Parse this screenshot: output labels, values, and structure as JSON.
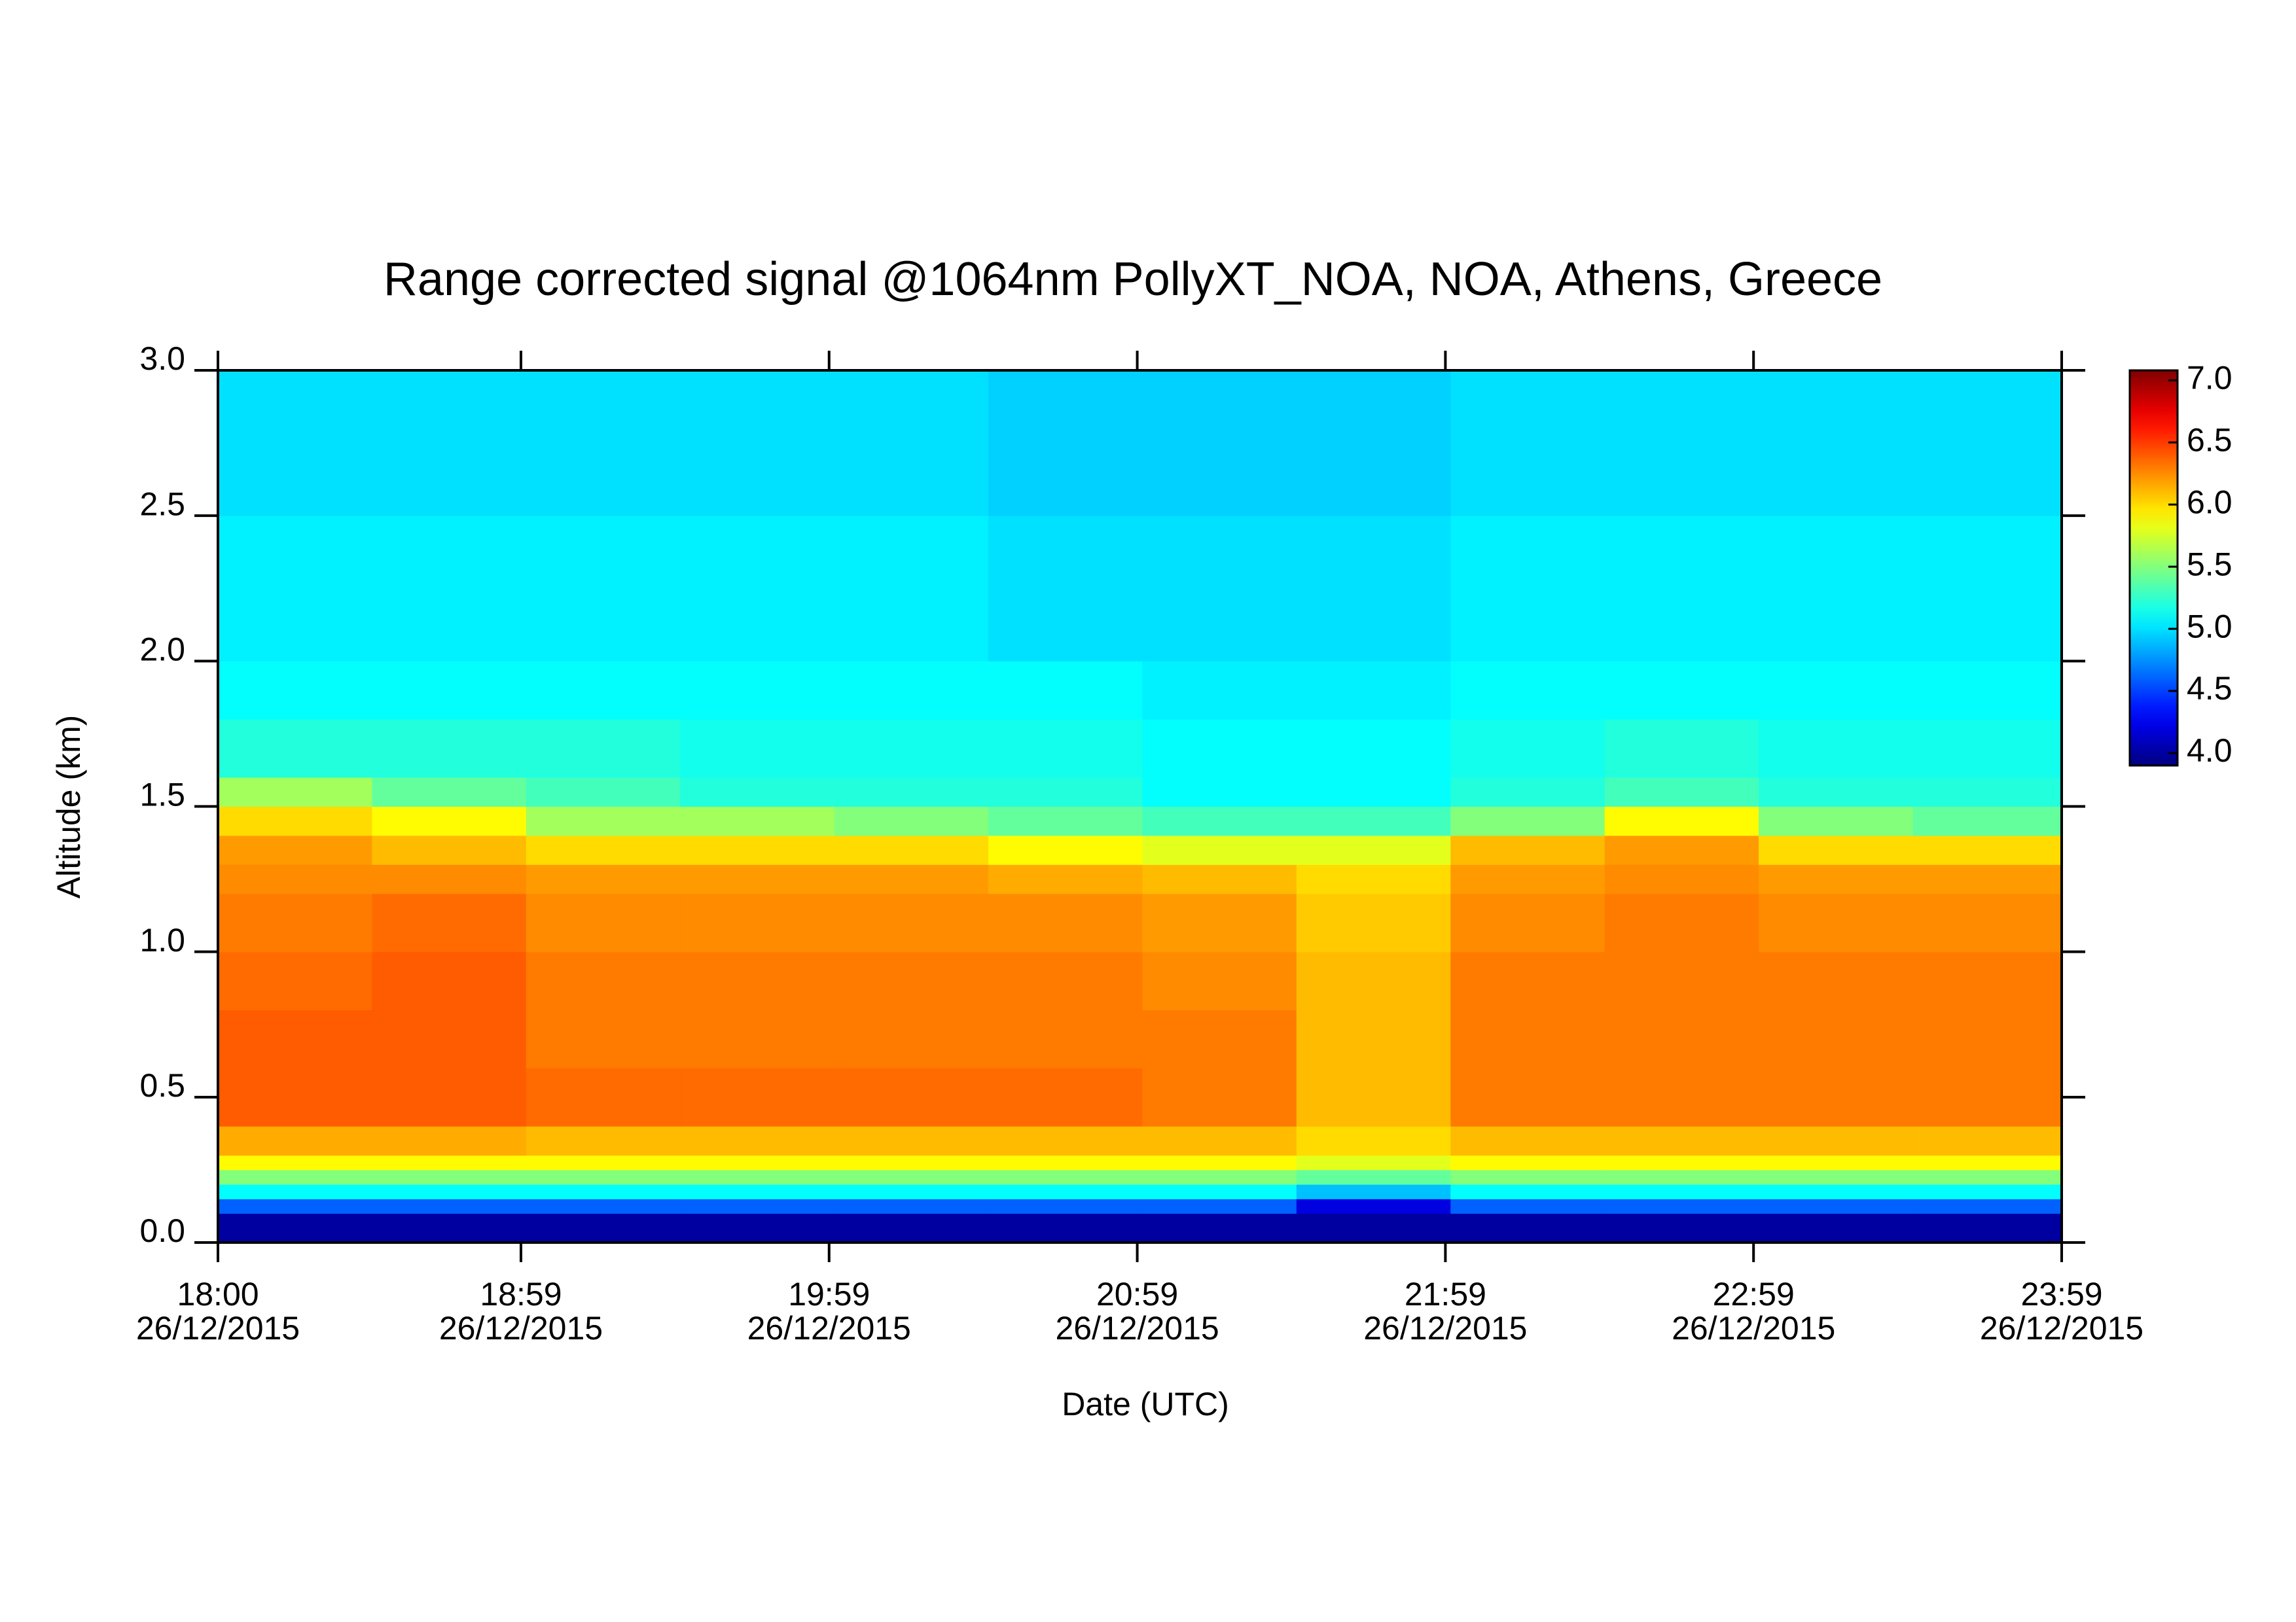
{
  "chart_data": {
    "type": "heatmap",
    "title": "Range corrected signal @1064nm  PollyXT_NOA, NOA, Athens, Greece",
    "xlabel": "Date (UTC)",
    "ylabel": "Altitude (km)",
    "colormap": "jet",
    "x_edges": [
      18,
      18.5,
      19,
      19.5,
      20,
      20.5,
      21,
      21.5,
      22,
      22.5,
      23,
      23.5,
      23.9833
    ],
    "y_edges": [
      0,
      0.1,
      0.15,
      0.2,
      0.25,
      0.3,
      0.4,
      0.6,
      0.8,
      1.0,
      1.2,
      1.3,
      1.4,
      1.5,
      1.6,
      1.8,
      2.0,
      2.5,
      3.0
    ],
    "z": [
      [
        4.0,
        4.0,
        4.0,
        4.0,
        4.0,
        4.0,
        4.0,
        4.0,
        4.0,
        4.0,
        4.0,
        4.0
      ],
      [
        4.6,
        4.6,
        4.6,
        4.6,
        4.6,
        4.6,
        4.6,
        4.2,
        4.6,
        4.6,
        4.6,
        4.6
      ],
      [
        5.1,
        5.1,
        5.1,
        5.1,
        5.1,
        5.1,
        5.1,
        4.9,
        5.1,
        5.1,
        5.1,
        5.1
      ],
      [
        5.5,
        5.5,
        5.5,
        5.5,
        5.5,
        5.5,
        5.5,
        5.4,
        5.5,
        5.5,
        5.5,
        5.5
      ],
      [
        5.9,
        5.9,
        5.9,
        5.9,
        5.9,
        5.9,
        5.9,
        5.8,
        5.9,
        5.9,
        5.9,
        5.9
      ],
      [
        6.15,
        6.15,
        6.1,
        6.1,
        6.1,
        6.1,
        6.1,
        6.0,
        6.1,
        6.1,
        6.1,
        6.1
      ],
      [
        6.4,
        6.4,
        6.35,
        6.35,
        6.35,
        6.35,
        6.3,
        6.1,
        6.3,
        6.3,
        6.3,
        6.3
      ],
      [
        6.4,
        6.4,
        6.3,
        6.3,
        6.3,
        6.3,
        6.3,
        6.1,
        6.3,
        6.3,
        6.3,
        6.3
      ],
      [
        6.35,
        6.4,
        6.3,
        6.3,
        6.3,
        6.3,
        6.25,
        6.1,
        6.3,
        6.3,
        6.3,
        6.3
      ],
      [
        6.3,
        6.35,
        6.25,
        6.25,
        6.25,
        6.25,
        6.2,
        6.05,
        6.25,
        6.3,
        6.25,
        6.25
      ],
      [
        6.25,
        6.25,
        6.2,
        6.2,
        6.2,
        6.15,
        6.1,
        6.0,
        6.2,
        6.25,
        6.2,
        6.2
      ],
      [
        6.2,
        6.1,
        6.0,
        6.0,
        6.0,
        5.9,
        5.8,
        5.8,
        6.1,
        6.2,
        6.0,
        6.0
      ],
      [
        6.0,
        5.9,
        5.6,
        5.6,
        5.5,
        5.4,
        5.3,
        5.3,
        5.5,
        5.9,
        5.5,
        5.4
      ],
      [
        5.6,
        5.4,
        5.3,
        5.2,
        5.2,
        5.2,
        5.1,
        5.1,
        5.2,
        5.3,
        5.2,
        5.2
      ],
      [
        5.2,
        5.2,
        5.2,
        5.15,
        5.15,
        5.15,
        5.1,
        5.1,
        5.15,
        5.2,
        5.15,
        5.15
      ],
      [
        5.1,
        5.1,
        5.1,
        5.1,
        5.1,
        5.1,
        5.05,
        5.05,
        5.1,
        5.1,
        5.1,
        5.1
      ],
      [
        5.05,
        5.05,
        5.05,
        5.05,
        5.05,
        5.0,
        5.0,
        5.0,
        5.05,
        5.05,
        5.05,
        5.05
      ],
      [
        5.0,
        5.0,
        5.0,
        5.0,
        5.0,
        4.95,
        4.95,
        4.95,
        5.0,
        5.0,
        5.0,
        5.0
      ]
    ],
    "xlim": [
      18,
      23.9833
    ],
    "ylim": [
      0,
      3.0
    ],
    "xticks": [
      {
        "value": 18,
        "label": "18:00\n26/12/2015"
      },
      {
        "value": 18.9833,
        "label": "18:59\n26/12/2015"
      },
      {
        "value": 19.9833,
        "label": "19:59\n26/12/2015"
      },
      {
        "value": 20.9833,
        "label": "20:59\n26/12/2015"
      },
      {
        "value": 21.9833,
        "label": "21:59\n26/12/2015"
      },
      {
        "value": 22.9833,
        "label": "22:59\n26/12/2015"
      },
      {
        "value": 23.9833,
        "label": "23:59\n26/12/2015"
      }
    ],
    "yticks": [
      {
        "value": 0,
        "label": "0.0"
      },
      {
        "value": 0.5,
        "label": "0.5"
      },
      {
        "value": 1,
        "label": "1.0"
      },
      {
        "value": 1.5,
        "label": "1.5"
      },
      {
        "value": 2,
        "label": "2.0"
      },
      {
        "value": 2.5,
        "label": "2.5"
      },
      {
        "value": 3,
        "label": "3.0"
      }
    ],
    "zlim": [
      3.9,
      7.08
    ],
    "zticks": [
      {
        "value": 4,
        "label": "4.0"
      },
      {
        "value": 4.5,
        "label": "4.5"
      },
      {
        "value": 5,
        "label": "5.0"
      },
      {
        "value": 5.5,
        "label": "5.5"
      },
      {
        "value": 6,
        "label": "6.0"
      },
      {
        "value": 6.5,
        "label": "6.5"
      },
      {
        "value": 7,
        "label": "7.0"
      }
    ]
  }
}
